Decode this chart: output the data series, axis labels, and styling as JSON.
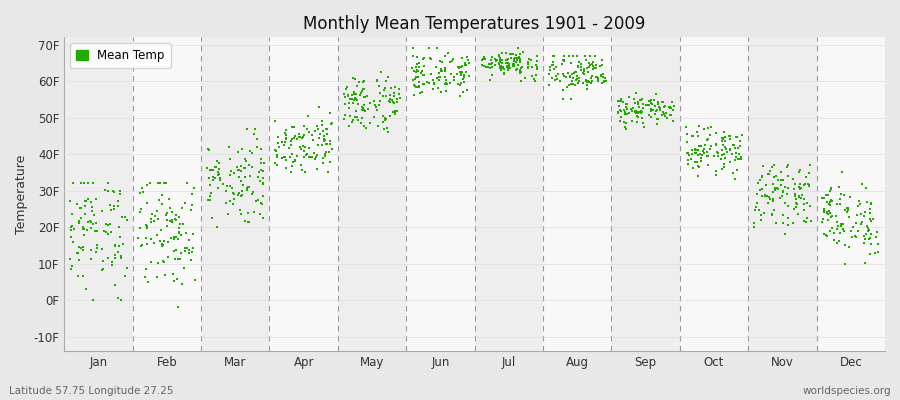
{
  "title": "Monthly Mean Temperatures 1901 - 2009",
  "ylabel": "Temperature",
  "xlabel_bottom_left": "Latitude 57.75 Longitude 27.25",
  "xlabel_bottom_right": "worldspecies.org",
  "dot_color": "#22aa00",
  "bg_color": "#e8e8e8",
  "band_odd": "#eeeeee",
  "band_even": "#f8f8f8",
  "yticks": [
    -10,
    0,
    10,
    20,
    30,
    40,
    50,
    60,
    70
  ],
  "ytick_labels": [
    "-10F",
    "0F",
    "10F",
    "20F",
    "30F",
    "40F",
    "50F",
    "60F",
    "70F"
  ],
  "ylim": [
    -14,
    72
  ],
  "months": [
    "Jan",
    "Feb",
    "Mar",
    "Apr",
    "May",
    "Jun",
    "Jul",
    "Aug",
    "Sep",
    "Oct",
    "Nov",
    "Dec"
  ],
  "legend_label": "Mean Temp",
  "month_mean": [
    19,
    19,
    33,
    43,
    54,
    62,
    65,
    62,
    52,
    41,
    29,
    22
  ],
  "month_std": [
    8,
    8,
    6,
    4,
    4,
    3,
    2,
    3,
    2,
    3,
    4,
    5
  ],
  "month_min": [
    -3,
    -2,
    20,
    35,
    46,
    56,
    60,
    55,
    47,
    33,
    18,
    10
  ],
  "month_max": [
    32,
    32,
    47,
    53,
    63,
    69,
    70,
    67,
    57,
    50,
    37,
    35
  ],
  "n_points": 109
}
